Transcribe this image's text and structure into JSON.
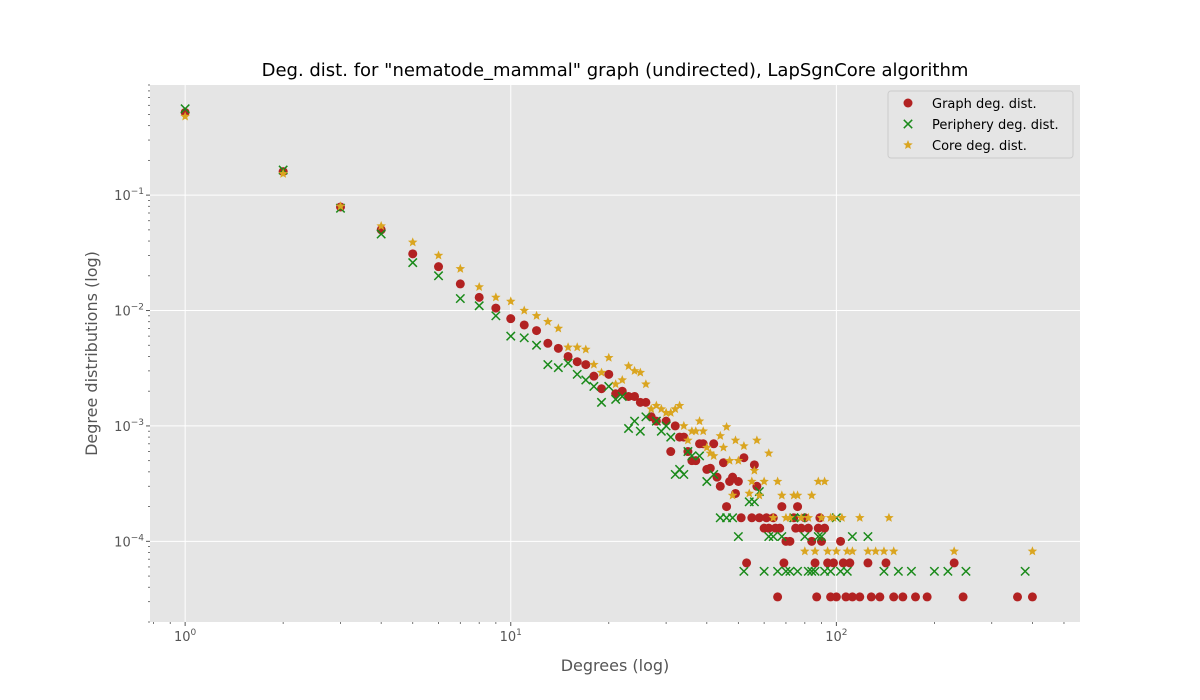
{
  "chart_data": {
    "type": "scatter",
    "title": "Deg. dist. for \"nematode_mammal\" graph (undirected), LapSgnCore algorithm",
    "xlabel": "Degrees (log)",
    "ylabel": "Degree distributions (log)",
    "xscale": "log",
    "yscale": "log",
    "xlim": [
      0.78,
      560
    ],
    "ylim": [
      2e-05,
      0.9
    ],
    "grid": true,
    "legend_position": "top-right",
    "x_ticks": [
      {
        "value": 1,
        "base": "10",
        "exp": "0"
      },
      {
        "value": 10,
        "base": "10",
        "exp": "1"
      },
      {
        "value": 100,
        "base": "10",
        "exp": "2"
      }
    ],
    "y_ticks": [
      {
        "value": 0.0001,
        "base": "10",
        "exp": "−4"
      },
      {
        "value": 0.001,
        "base": "10",
        "exp": "−3"
      },
      {
        "value": 0.01,
        "base": "10",
        "exp": "−2"
      },
      {
        "value": 0.1,
        "base": "10",
        "exp": "−1"
      }
    ],
    "series": [
      {
        "name": "Graph deg. dist.",
        "marker": "circle",
        "color": "#b22222",
        "points": [
          [
            1,
            0.52
          ],
          [
            2,
            0.16
          ],
          [
            3,
            0.079
          ],
          [
            4,
            0.05
          ],
          [
            5,
            0.031
          ],
          [
            6,
            0.024
          ],
          [
            7,
            0.017
          ],
          [
            8,
            0.013
          ],
          [
            9,
            0.0105
          ],
          [
            10,
            0.0085
          ],
          [
            11,
            0.0075
          ],
          [
            12,
            0.0067
          ],
          [
            13,
            0.0052
          ],
          [
            14,
            0.0047
          ],
          [
            15,
            0.004
          ],
          [
            16,
            0.0036
          ],
          [
            17,
            0.0034
          ],
          [
            18,
            0.0027
          ],
          [
            19,
            0.0021
          ],
          [
            20,
            0.0028
          ],
          [
            21,
            0.0019
          ],
          [
            22,
            0.002
          ],
          [
            23,
            0.0018
          ],
          [
            24,
            0.0018
          ],
          [
            25,
            0.0016
          ],
          [
            26,
            0.0016
          ],
          [
            27,
            0.0012
          ],
          [
            28,
            0.0011
          ],
          [
            30,
            0.0011
          ],
          [
            31,
            0.0006
          ],
          [
            32,
            0.001
          ],
          [
            33,
            0.0008
          ],
          [
            34,
            0.0008
          ],
          [
            35,
            0.0006
          ],
          [
            36,
            0.0005
          ],
          [
            37,
            0.0005
          ],
          [
            38,
            0.0007
          ],
          [
            39,
            0.0007
          ],
          [
            40,
            0.00042
          ],
          [
            41,
            0.00043
          ],
          [
            42,
            0.0007
          ],
          [
            43,
            0.00036
          ],
          [
            44,
            0.0003
          ],
          [
            45,
            0.00048
          ],
          [
            46,
            0.0002
          ],
          [
            47,
            0.00033
          ],
          [
            48,
            0.00036
          ],
          [
            49,
            0.00026
          ],
          [
            50,
            0.00033
          ],
          [
            51,
            0.00016
          ],
          [
            52,
            0.00053
          ],
          [
            53,
            6.5e-05
          ],
          [
            55,
            0.00016
          ],
          [
            56,
            0.00046
          ],
          [
            57,
            0.0003
          ],
          [
            58,
            0.00016
          ],
          [
            60,
            0.00013
          ],
          [
            61,
            0.00016
          ],
          [
            62,
            0.00013
          ],
          [
            64,
            0.00016
          ],
          [
            65,
            0.00013
          ],
          [
            66,
            3.3e-05
          ],
          [
            67,
            0.00013
          ],
          [
            68,
            0.0002
          ],
          [
            69,
            6.5e-05
          ],
          [
            70,
            0.0001
          ],
          [
            72,
            0.0001
          ],
          [
            74,
            0.00016
          ],
          [
            75,
            0.00013
          ],
          [
            76,
            0.0002
          ],
          [
            78,
            0.00013
          ],
          [
            80,
            0.00016
          ],
          [
            82,
            0.00013
          ],
          [
            84,
            0.0001
          ],
          [
            86,
            6.5e-05
          ],
          [
            87,
            3.3e-05
          ],
          [
            88,
            0.00013
          ],
          [
            89,
            0.00016
          ],
          [
            90,
            0.0001
          ],
          [
            92,
            0.00013
          ],
          [
            94,
            6.5e-05
          ],
          [
            96,
            3.3e-05
          ],
          [
            98,
            6.5e-05
          ],
          [
            100,
            3.3e-05
          ],
          [
            103,
            0.0001
          ],
          [
            105,
            6.5e-05
          ],
          [
            107,
            3.3e-05
          ],
          [
            110,
            6.5e-05
          ],
          [
            112,
            3.3e-05
          ],
          [
            118,
            3.3e-05
          ],
          [
            125,
            6.5e-05
          ],
          [
            128,
            3.3e-05
          ],
          [
            136,
            3.3e-05
          ],
          [
            142,
            6.5e-05
          ],
          [
            150,
            3.3e-05
          ],
          [
            160,
            3.3e-05
          ],
          [
            175,
            3.3e-05
          ],
          [
            190,
            3.3e-05
          ],
          [
            230,
            6.5e-05
          ],
          [
            245,
            3.3e-05
          ],
          [
            360,
            3.3e-05
          ],
          [
            400,
            3.3e-05
          ]
        ]
      },
      {
        "name": "Periphery deg. dist.",
        "marker": "x",
        "color": "#1a8a1a",
        "points": [
          [
            1,
            0.56
          ],
          [
            2,
            0.165
          ],
          [
            3,
            0.077
          ],
          [
            4,
            0.046
          ],
          [
            5,
            0.026
          ],
          [
            6,
            0.02
          ],
          [
            7,
            0.0127
          ],
          [
            8,
            0.011
          ],
          [
            9,
            0.009
          ],
          [
            10,
            0.006
          ],
          [
            11,
            0.0058
          ],
          [
            12,
            0.005
          ],
          [
            13,
            0.0034
          ],
          [
            14,
            0.0032
          ],
          [
            15,
            0.0035
          ],
          [
            16,
            0.0028
          ],
          [
            17,
            0.0025
          ],
          [
            18,
            0.0022
          ],
          [
            19,
            0.0016
          ],
          [
            20,
            0.0022
          ],
          [
            21,
            0.0017
          ],
          [
            22,
            0.0018
          ],
          [
            23,
            0.00095
          ],
          [
            24,
            0.0011
          ],
          [
            25,
            0.0009
          ],
          [
            26,
            0.0012
          ],
          [
            28,
            0.0011
          ],
          [
            29,
            0.0009
          ],
          [
            30,
            0.001
          ],
          [
            31,
            0.0008
          ],
          [
            32,
            0.00038
          ],
          [
            33,
            0.00042
          ],
          [
            34,
            0.00038
          ],
          [
            35,
            0.0006
          ],
          [
            36,
            0.00055
          ],
          [
            38,
            0.00055
          ],
          [
            40,
            0.00033
          ],
          [
            42,
            0.00038
          ],
          [
            44,
            0.00016
          ],
          [
            46,
            0.00016
          ],
          [
            48,
            0.00016
          ],
          [
            50,
            0.00011
          ],
          [
            52,
            5.5e-05
          ],
          [
            54,
            0.00022
          ],
          [
            56,
            0.00022
          ],
          [
            58,
            0.00027
          ],
          [
            60,
            5.5e-05
          ],
          [
            62,
            0.00011
          ],
          [
            64,
            0.00011
          ],
          [
            66,
            5.5e-05
          ],
          [
            68,
            0.00011
          ],
          [
            70,
            5.5e-05
          ],
          [
            72,
            5.5e-05
          ],
          [
            74,
            0.00016
          ],
          [
            76,
            5.5e-05
          ],
          [
            78,
            0.00016
          ],
          [
            80,
            0.00011
          ],
          [
            82,
            5.5e-05
          ],
          [
            84,
            5.5e-05
          ],
          [
            86,
            5.5e-05
          ],
          [
            88,
            0.00011
          ],
          [
            90,
            0.00011
          ],
          [
            92,
            5.5e-05
          ],
          [
            96,
            5.5e-05
          ],
          [
            100,
            0.00016
          ],
          [
            103,
            5.5e-05
          ],
          [
            108,
            5.5e-05
          ],
          [
            112,
            0.00011
          ],
          [
            125,
            0.00011
          ],
          [
            140,
            5.5e-05
          ],
          [
            155,
            5.5e-05
          ],
          [
            170,
            5.5e-05
          ],
          [
            200,
            5.5e-05
          ],
          [
            220,
            5.5e-05
          ],
          [
            250,
            5.5e-05
          ],
          [
            380,
            5.5e-05
          ]
        ]
      },
      {
        "name": "Core deg. dist.",
        "marker": "star",
        "color": "#daa520",
        "points": [
          [
            1,
            0.48
          ],
          [
            2,
            0.153
          ],
          [
            3,
            0.08
          ],
          [
            4,
            0.054
          ],
          [
            5,
            0.039
          ],
          [
            6,
            0.03
          ],
          [
            7,
            0.023
          ],
          [
            8,
            0.016
          ],
          [
            9,
            0.013
          ],
          [
            10,
            0.012
          ],
          [
            11,
            0.01
          ],
          [
            12,
            0.009
          ],
          [
            13,
            0.008
          ],
          [
            14,
            0.007
          ],
          [
            15,
            0.0048
          ],
          [
            16,
            0.0048
          ],
          [
            17,
            0.0046
          ],
          [
            18,
            0.0034
          ],
          [
            19,
            0.0029
          ],
          [
            20,
            0.0039
          ],
          [
            21,
            0.0023
          ],
          [
            22,
            0.0025
          ],
          [
            23,
            0.0033
          ],
          [
            24,
            0.003
          ],
          [
            25,
            0.0029
          ],
          [
            26,
            0.0023
          ],
          [
            27,
            0.0014
          ],
          [
            28,
            0.0015
          ],
          [
            29,
            0.0014
          ],
          [
            30,
            0.0013
          ],
          [
            31,
            0.0013
          ],
          [
            32,
            0.0014
          ],
          [
            33,
            0.0015
          ],
          [
            34,
            0.001
          ],
          [
            35,
            0.00075
          ],
          [
            36,
            0.0009
          ],
          [
            37,
            0.0009
          ],
          [
            38,
            0.0011
          ],
          [
            39,
            0.0009
          ],
          [
            40,
            0.00065
          ],
          [
            41,
            0.00058
          ],
          [
            42,
            0.00055
          ],
          [
            44,
            0.00082
          ],
          [
            45,
            0.00065
          ],
          [
            46,
            0.00098
          ],
          [
            47,
            0.0005
          ],
          [
            48,
            0.00025
          ],
          [
            49,
            0.00075
          ],
          [
            50,
            0.0005
          ],
          [
            52,
            0.00067
          ],
          [
            54,
            0.00026
          ],
          [
            55,
            0.00033
          ],
          [
            56,
            0.00041
          ],
          [
            57,
            0.00075
          ],
          [
            58,
            0.00025
          ],
          [
            60,
            0.00033
          ],
          [
            62,
            0.00058
          ],
          [
            64,
            0.00016
          ],
          [
            66,
            0.00033
          ],
          [
            68,
            0.00025
          ],
          [
            70,
            0.00016
          ],
          [
            72,
            0.00016
          ],
          [
            74,
            0.00025
          ],
          [
            76,
            0.00025
          ],
          [
            78,
            0.00016
          ],
          [
            80,
            8.2e-05
          ],
          [
            82,
            0.00016
          ],
          [
            84,
            0.00025
          ],
          [
            86,
            8.2e-05
          ],
          [
            88,
            0.00033
          ],
          [
            90,
            0.00016
          ],
          [
            92,
            0.00033
          ],
          [
            94,
            8.2e-05
          ],
          [
            96,
            0.00016
          ],
          [
            98,
            0.00016
          ],
          [
            100,
            8.2e-05
          ],
          [
            104,
            0.00016
          ],
          [
            108,
            8.2e-05
          ],
          [
            112,
            8.2e-05
          ],
          [
            118,
            0.00016
          ],
          [
            125,
            8.2e-05
          ],
          [
            132,
            8.2e-05
          ],
          [
            140,
            8.2e-05
          ],
          [
            145,
            0.00016
          ],
          [
            150,
            8.2e-05
          ],
          [
            230,
            8.2e-05
          ],
          [
            400,
            8.2e-05
          ]
        ]
      }
    ]
  }
}
